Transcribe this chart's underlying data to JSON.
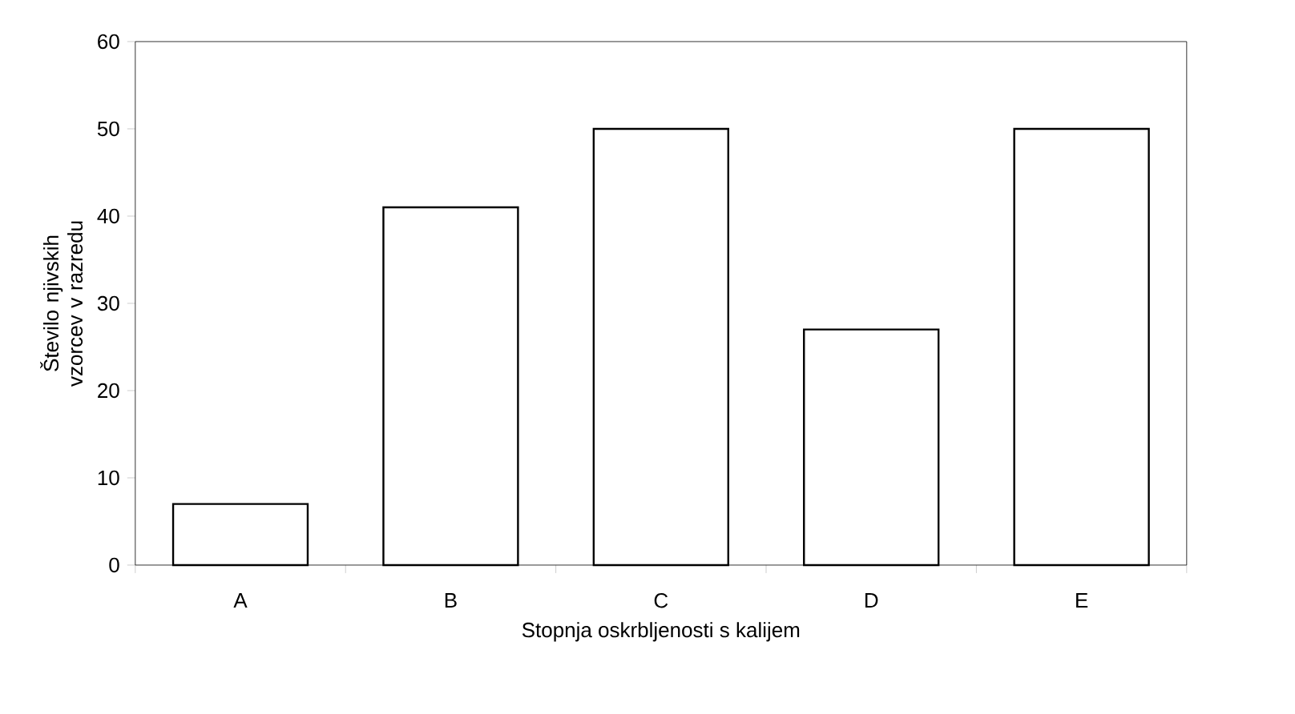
{
  "chart_data": {
    "type": "bar",
    "xlabel": "Stopnja oskrbljenosti s kalijem",
    "ylabel": "Število njivskih vzorcev v razredu",
    "categories": [
      "A",
      "B",
      "C",
      "D",
      "E"
    ],
    "values": [
      7,
      41,
      50,
      27,
      50
    ],
    "color": "#ffffff",
    "ylim": [
      0,
      60
    ],
    "yticks": [
      0,
      10,
      20,
      30,
      40,
      50,
      60
    ],
    "grid": false
  }
}
